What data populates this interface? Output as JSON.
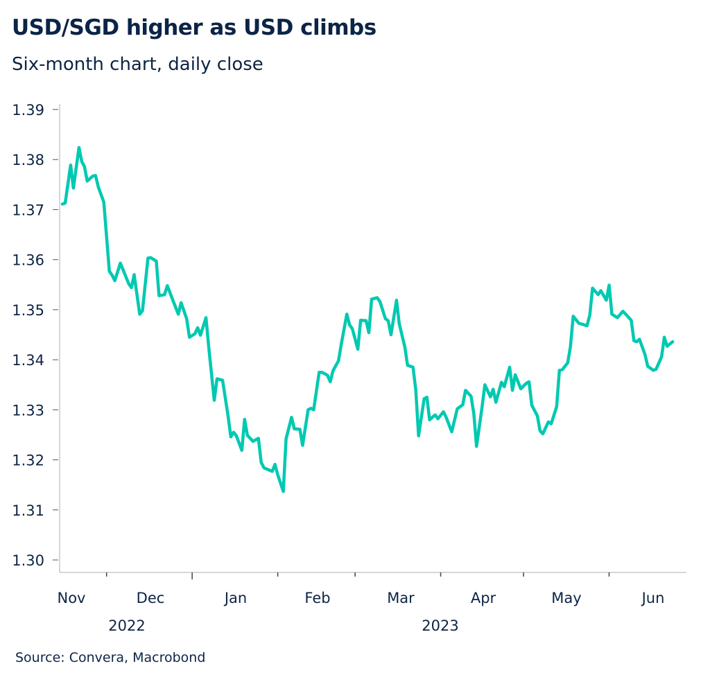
{
  "title": "USD/SGD higher as USD climbs",
  "subtitle": "Six-month chart, daily close",
  "source": "Source: Convera, Macrobond",
  "colors": {
    "line": "#00c9b1",
    "text": "#0d2444",
    "axis": "#c8c8c8"
  },
  "chart_data": {
    "type": "line",
    "title": "USD/SGD higher as USD climbs",
    "subtitle": "Six-month chart, daily close",
    "xlabel": "",
    "ylabel": "",
    "ylim": [
      1.3,
      1.39
    ],
    "xlim": [
      "2022-11-14",
      "2023-06-29"
    ],
    "grid": false,
    "legend": "none",
    "y_ticks": [
      "1.30",
      "1.31",
      "1.32",
      "1.33",
      "1.34",
      "1.35",
      "1.36",
      "1.37",
      "1.38",
      "1.39"
    ],
    "x_month_labels": [
      "Nov",
      "Dec",
      "Jan",
      "Feb",
      "Mar",
      "Apr",
      "May",
      "Jun"
    ],
    "x_year_labels": [
      "2022",
      "2023"
    ],
    "series": [
      {
        "points": [
          [
            "2022-11-15",
            1.3711
          ],
          [
            "2022-11-16",
            1.3713
          ],
          [
            "2022-11-18",
            1.3789
          ],
          [
            "2022-11-19",
            1.3743
          ],
          [
            "2022-11-21",
            1.3824
          ],
          [
            "2022-11-22",
            1.3796
          ],
          [
            "2022-11-23",
            1.3786
          ],
          [
            "2022-11-24",
            1.3757
          ],
          [
            "2022-11-26",
            1.3767
          ],
          [
            "2022-11-27",
            1.3768
          ],
          [
            "2022-11-28",
            1.3745
          ],
          [
            "2022-11-30",
            1.3715
          ],
          [
            "2022-12-02",
            1.3577
          ],
          [
            "2022-12-03",
            1.3569
          ],
          [
            "2022-12-04",
            1.3558
          ],
          [
            "2022-12-06",
            1.3593
          ],
          [
            "2022-12-09",
            1.3552
          ],
          [
            "2022-12-10",
            1.3544
          ],
          [
            "2022-12-11",
            1.357
          ],
          [
            "2022-12-13",
            1.3491
          ],
          [
            "2022-12-14",
            1.3498
          ],
          [
            "2022-12-16",
            1.3603
          ],
          [
            "2022-12-17",
            1.3604
          ],
          [
            "2022-12-19",
            1.3597
          ],
          [
            "2022-12-20",
            1.3528
          ],
          [
            "2022-12-22",
            1.353
          ],
          [
            "2022-12-23",
            1.3548
          ],
          [
            "2022-12-25",
            1.3519
          ],
          [
            "2022-12-27",
            1.3491
          ],
          [
            "2022-12-28",
            1.3514
          ],
          [
            "2022-12-30",
            1.3482
          ],
          [
            "2022-12-31",
            1.3445
          ],
          [
            "2023-01-02",
            1.3452
          ],
          [
            "2023-01-03",
            1.3464
          ],
          [
            "2023-01-04",
            1.3449
          ],
          [
            "2023-01-06",
            1.3484
          ],
          [
            "2023-01-07",
            1.3426
          ],
          [
            "2023-01-09",
            1.3319
          ],
          [
            "2023-01-10",
            1.3362
          ],
          [
            "2023-01-12",
            1.3359
          ],
          [
            "2023-01-14",
            1.3288
          ],
          [
            "2023-01-15",
            1.3246
          ],
          [
            "2023-01-16",
            1.3255
          ],
          [
            "2023-01-17",
            1.3248
          ],
          [
            "2023-01-19",
            1.3219
          ],
          [
            "2023-01-20",
            1.3281
          ],
          [
            "2023-01-21",
            1.3249
          ],
          [
            "2023-01-23",
            1.3237
          ],
          [
            "2023-01-25",
            1.3243
          ],
          [
            "2023-01-26",
            1.3195
          ],
          [
            "2023-01-27",
            1.3184
          ],
          [
            "2023-01-30",
            1.3177
          ],
          [
            "2023-01-31",
            1.3191
          ],
          [
            "2023-02-01",
            1.317
          ],
          [
            "2023-02-03",
            1.3137
          ],
          [
            "2023-02-04",
            1.3242
          ],
          [
            "2023-02-06",
            1.3285
          ],
          [
            "2023-02-07",
            1.3262
          ],
          [
            "2023-02-09",
            1.3261
          ],
          [
            "2023-02-10",
            1.3229
          ],
          [
            "2023-02-12",
            1.33
          ],
          [
            "2023-02-13",
            1.3303
          ],
          [
            "2023-02-14",
            1.33
          ],
          [
            "2023-02-16",
            1.3375
          ],
          [
            "2023-02-17",
            1.3375
          ],
          [
            "2023-02-19",
            1.3369
          ],
          [
            "2023-02-20",
            1.3356
          ],
          [
            "2023-02-21",
            1.3378
          ],
          [
            "2023-02-23",
            1.3398
          ],
          [
            "2023-02-24",
            1.3431
          ],
          [
            "2023-02-26",
            1.3491
          ],
          [
            "2023-02-27",
            1.347
          ],
          [
            "2023-02-28",
            1.3462
          ],
          [
            "2023-03-02",
            1.3421
          ],
          [
            "2023-03-03",
            1.3479
          ],
          [
            "2023-03-05",
            1.3478
          ],
          [
            "2023-03-06",
            1.3454
          ],
          [
            "2023-03-07",
            1.3521
          ],
          [
            "2023-03-09",
            1.3524
          ],
          [
            "2023-03-10",
            1.3516
          ],
          [
            "2023-03-12",
            1.3482
          ],
          [
            "2023-03-13",
            1.3478
          ],
          [
            "2023-03-14",
            1.345
          ],
          [
            "2023-03-16",
            1.3519
          ],
          [
            "2023-03-17",
            1.3472
          ],
          [
            "2023-03-19",
            1.3426
          ],
          [
            "2023-03-20",
            1.3389
          ],
          [
            "2023-03-22",
            1.3385
          ],
          [
            "2023-03-23",
            1.3339
          ],
          [
            "2023-03-24",
            1.3248
          ],
          [
            "2023-03-26",
            1.3322
          ],
          [
            "2023-03-27",
            1.3325
          ],
          [
            "2023-03-28",
            1.328
          ],
          [
            "2023-03-30",
            1.329
          ],
          [
            "2023-03-31",
            1.3282
          ],
          [
            "2023-04-02",
            1.3296
          ],
          [
            "2023-04-03",
            1.3285
          ],
          [
            "2023-04-05",
            1.3256
          ],
          [
            "2023-04-06",
            1.3279
          ],
          [
            "2023-04-07",
            1.3302
          ],
          [
            "2023-04-09",
            1.331
          ],
          [
            "2023-04-10",
            1.3339
          ],
          [
            "2023-04-12",
            1.3327
          ],
          [
            "2023-04-13",
            1.3292
          ],
          [
            "2023-04-14",
            1.3227
          ],
          [
            "2023-04-16",
            1.3306
          ],
          [
            "2023-04-17",
            1.335
          ],
          [
            "2023-04-19",
            1.3326
          ],
          [
            "2023-04-20",
            1.3341
          ],
          [
            "2023-04-21",
            1.3315
          ],
          [
            "2023-04-23",
            1.3355
          ],
          [
            "2023-04-24",
            1.3346
          ],
          [
            "2023-04-26",
            1.3385
          ],
          [
            "2023-04-27",
            1.3339
          ],
          [
            "2023-04-28",
            1.337
          ],
          [
            "2023-04-30",
            1.3342
          ],
          [
            "2023-05-02",
            1.3353
          ],
          [
            "2023-05-03",
            1.3356
          ],
          [
            "2023-05-04",
            1.3309
          ],
          [
            "2023-05-06",
            1.3288
          ],
          [
            "2023-05-07",
            1.3258
          ],
          [
            "2023-05-08",
            1.3252
          ],
          [
            "2023-05-10",
            1.3276
          ],
          [
            "2023-05-11",
            1.3272
          ],
          [
            "2023-05-13",
            1.3306
          ],
          [
            "2023-05-14",
            1.3379
          ],
          [
            "2023-05-15",
            1.338
          ],
          [
            "2023-05-17",
            1.3394
          ],
          [
            "2023-05-18",
            1.3426
          ],
          [
            "2023-05-19",
            1.3487
          ],
          [
            "2023-05-21",
            1.3473
          ],
          [
            "2023-05-24",
            1.3468
          ],
          [
            "2023-05-25",
            1.3489
          ],
          [
            "2023-05-26",
            1.3543
          ],
          [
            "2023-05-28",
            1.353
          ],
          [
            "2023-05-29",
            1.3538
          ],
          [
            "2023-05-31",
            1.3519
          ],
          [
            "2023-06-01",
            1.3549
          ],
          [
            "2023-06-02",
            1.3491
          ],
          [
            "2023-06-04",
            1.3484
          ],
          [
            "2023-06-06",
            1.3497
          ],
          [
            "2023-06-07",
            1.3491
          ],
          [
            "2023-06-09",
            1.3479
          ],
          [
            "2023-06-10",
            1.3438
          ],
          [
            "2023-06-11",
            1.3436
          ],
          [
            "2023-06-12",
            1.3441
          ],
          [
            "2023-06-14",
            1.341
          ],
          [
            "2023-06-15",
            1.3387
          ],
          [
            "2023-06-17",
            1.3379
          ],
          [
            "2023-06-18",
            1.3381
          ],
          [
            "2023-06-20",
            1.3406
          ],
          [
            "2023-06-21",
            1.3445
          ],
          [
            "2023-06-22",
            1.3427
          ],
          [
            "2023-06-24",
            1.3436
          ]
        ]
      }
    ]
  }
}
